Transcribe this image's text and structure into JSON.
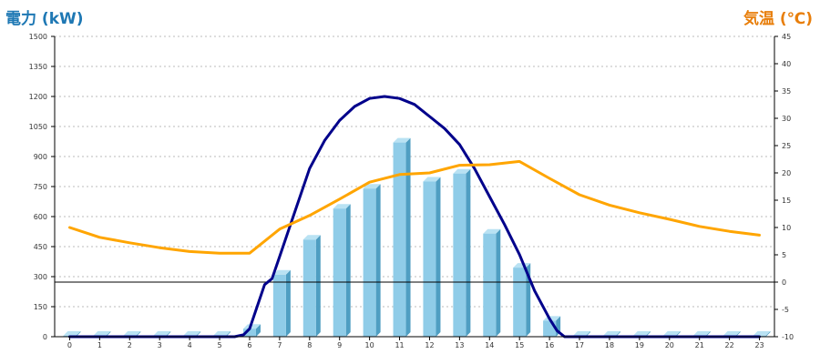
{
  "chart_data": {
    "type": "bar",
    "left_axis_label": "電力 (kW)",
    "right_axis_label": "気温 (℃)",
    "categories": [
      "0",
      "1",
      "2",
      "3",
      "4",
      "5",
      "6",
      "7",
      "8",
      "9",
      "10",
      "11",
      "12",
      "13",
      "14",
      "15",
      "16",
      "17",
      "18",
      "19",
      "20",
      "21",
      "22",
      "23"
    ],
    "ylim_left": [
      0,
      1500
    ],
    "ylim_right": [
      -10,
      45
    ],
    "left_ticks": [
      "0",
      "150",
      "300",
      "450",
      "600",
      "750",
      "900",
      "1050",
      "1200",
      "1350",
      "1500"
    ],
    "right_ticks": [
      "-10",
      "-5",
      "0",
      "5",
      "10",
      "15",
      "20",
      "25",
      "30",
      "35",
      "40",
      "45"
    ],
    "grid": true,
    "zero_line_right": 0,
    "bars": {
      "axis": "left",
      "values": [
        5,
        5,
        5,
        5,
        5,
        5,
        40,
        310,
        485,
        640,
        740,
        970,
        775,
        815,
        515,
        345,
        80,
        5,
        5,
        5,
        5,
        5,
        5,
        5
      ]
    },
    "lines": [
      {
        "axis": "left",
        "color": "#00008b",
        "x": [
          0,
          1,
          2,
          3,
          4,
          5,
          5.5,
          5.8,
          6,
          6.25,
          6.5,
          6.75,
          7,
          7.5,
          8,
          8.5,
          9,
          9.5,
          10,
          10.5,
          11,
          11.5,
          12,
          12.5,
          13,
          13.5,
          14,
          14.5,
          15,
          15.5,
          16,
          16.25,
          16.5,
          17,
          18,
          19,
          20,
          21,
          22,
          23
        ],
        "y": [
          0,
          0,
          0,
          0,
          0,
          0,
          0,
          10,
          40,
          150,
          260,
          290,
          400,
          620,
          840,
          980,
          1080,
          1150,
          1190,
          1200,
          1190,
          1160,
          1100,
          1040,
          960,
          840,
          700,
          560,
          410,
          230,
          90,
          30,
          0,
          0,
          0,
          0,
          0,
          0,
          0,
          0
        ]
      },
      {
        "axis": "right",
        "color": "#ffa500",
        "x": [
          0,
          1,
          2,
          3,
          4,
          5,
          6,
          7,
          8,
          9,
          10,
          11,
          12,
          13,
          14,
          15,
          16,
          17,
          18,
          19,
          20,
          21,
          22,
          23
        ],
        "y": [
          10,
          8.2,
          7.2,
          6.3,
          5.6,
          5.3,
          5.3,
          9.7,
          12.2,
          15.2,
          18.3,
          19.7,
          20,
          21.4,
          21.5,
          22.1,
          19,
          16,
          14.1,
          12.7,
          11.5,
          10.2,
          9.3,
          8.6
        ]
      }
    ]
  },
  "colors": {
    "left_title": "#1e78b4",
    "right_title": "#e87e0a",
    "bar_front": "#8fcce8",
    "bar_side": "#4f9ec2",
    "bar_top": "#b9e2f3",
    "grid": "#bbbbbb",
    "axis": "#000000"
  }
}
